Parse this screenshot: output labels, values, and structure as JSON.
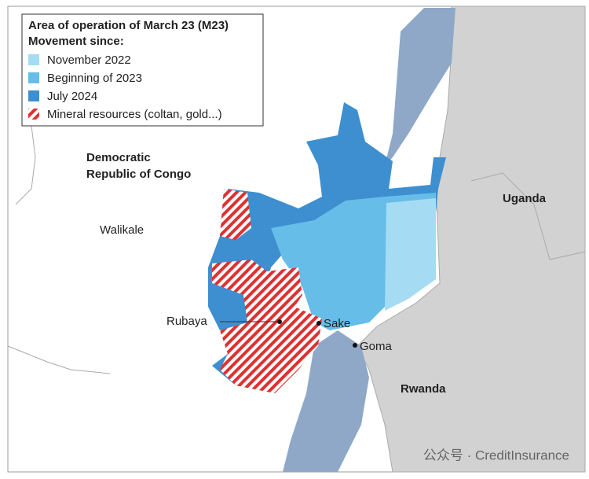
{
  "legend": {
    "title": "Area of operation of March 23 (M23)",
    "subtitle": "Movement since:",
    "items": [
      "November 2022",
      "Beginning of 2023",
      "July 2024",
      "Mineral resources (coltan, gold...)"
    ]
  },
  "labels": {
    "drc_line1": "Democratic",
    "drc_line2": "Republic of Congo",
    "uganda": "Uganda",
    "rwanda": "Rwanda",
    "walikale": "Walikale",
    "rubaya": "Rubaya",
    "sake": "Sake",
    "goma": "Goma"
  },
  "watermark": "公众号 · CreditInsurance"
}
